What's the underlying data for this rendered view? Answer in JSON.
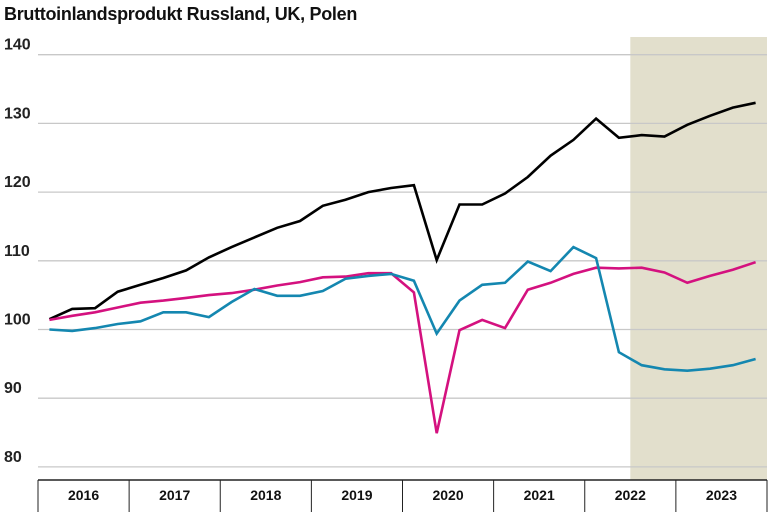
{
  "chart_data": {
    "type": "line",
    "title": "Bruttoinlandsprodukt Russland, UK, Polen",
    "xlabel": "",
    "ylabel": "",
    "ylim": [
      78,
      143
    ],
    "yticks": [
      80,
      90,
      100,
      110,
      120,
      130,
      140
    ],
    "year_labels": [
      "2016",
      "2017",
      "2018",
      "2019",
      "2020",
      "2021",
      "2022",
      "2023"
    ],
    "x": [
      "2016Q1",
      "2016Q2",
      "2016Q3",
      "2016Q4",
      "2017Q1",
      "2017Q2",
      "2017Q3",
      "2017Q4",
      "2018Q1",
      "2018Q2",
      "2018Q3",
      "2018Q4",
      "2019Q1",
      "2019Q2",
      "2019Q3",
      "2019Q4",
      "2020Q1",
      "2020Q2",
      "2020Q3",
      "2020Q4",
      "2021Q1",
      "2021Q2",
      "2021Q3",
      "2021Q4",
      "2022Q1",
      "2022Q2",
      "2022Q3",
      "2022Q4",
      "2023Q1",
      "2023Q2",
      "2023Q3",
      "2023Q4"
    ],
    "grid": true,
    "shaded_region": {
      "from": "2022Q3",
      "to": "2023Q4",
      "color": "#e2dfcc"
    },
    "series": [
      {
        "color": "#000000",
        "values": [
          101.5,
          103,
          103.1,
          105.5,
          106.5,
          107.5,
          108.6,
          110.5,
          112,
          113.4,
          114.8,
          115.8,
          118,
          118.9,
          120,
          120.6,
          121,
          110.1,
          118.2,
          118.2,
          119.8,
          122.2,
          125.3,
          127.6,
          130.7,
          127.9,
          128.3,
          128.1,
          129.8,
          131.1,
          132.3,
          133
        ]
      },
      {
        "color": "#d4117f",
        "values": [
          101.4,
          102,
          102.5,
          103.2,
          103.9,
          104.2,
          104.6,
          105,
          105.3,
          105.8,
          106.4,
          106.9,
          107.6,
          107.7,
          108.2,
          108.2,
          105.4,
          84.9,
          99.9,
          101.4,
          100.2,
          105.8,
          106.8,
          108.1,
          109,
          108.9,
          109,
          108.3,
          106.8,
          107.8,
          108.7,
          109.8
        ]
      },
      {
        "color": "#1487b0",
        "values": [
          100,
          99.8,
          100.2,
          100.8,
          101.2,
          102.5,
          102.5,
          101.8,
          104,
          105.9,
          104.9,
          104.9,
          105.6,
          107.4,
          107.8,
          108.1,
          107.1,
          99.4,
          104.2,
          106.5,
          106.8,
          109.9,
          108.5,
          112,
          110.4,
          96.7,
          94.8,
          94.2,
          94,
          94.3,
          94.8,
          95.7
        ]
      }
    ]
  }
}
